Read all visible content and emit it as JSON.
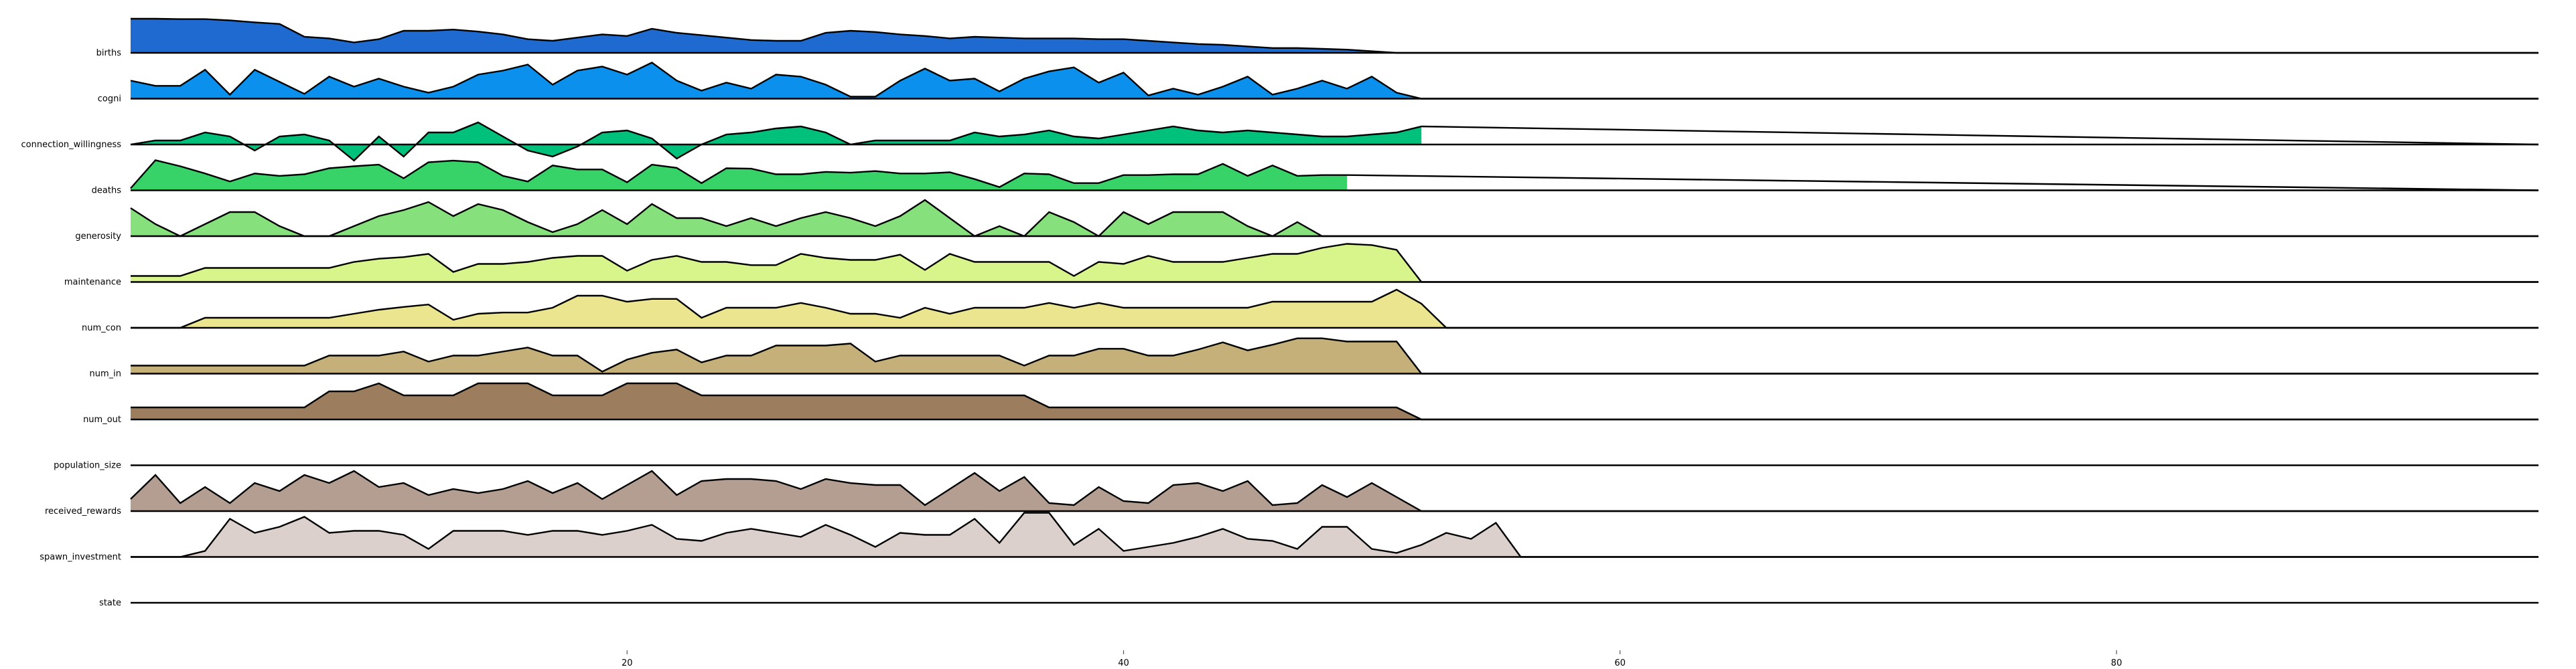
{
  "chart_data": {
    "type": "area",
    "title": "",
    "xlabel": "",
    "ylabel": "",
    "xlim": [
      0,
      97
    ],
    "x_ticks": [
      20,
      40,
      60,
      80
    ],
    "grid": false,
    "legend": "none",
    "series": [
      {
        "name": "births",
        "color": "#1f6ad0",
        "values": [
          0.85,
          0.85,
          0.84,
          0.84,
          0.81,
          0.76,
          0.72,
          0.4,
          0.36,
          0.26,
          0.34,
          0.55,
          0.55,
          0.58,
          0.53,
          0.46,
          0.34,
          0.3,
          0.38,
          0.46,
          0.42,
          0.6,
          0.5,
          0.44,
          0.38,
          0.32,
          0.3,
          0.3,
          0.5,
          0.55,
          0.52,
          0.46,
          0.42,
          0.36,
          0.4,
          0.38,
          0.36,
          0.36,
          0.36,
          0.34,
          0.34,
          0.3,
          0.26,
          0.22,
          0.2,
          0.16,
          0.12,
          0.12,
          0.1,
          0.08,
          0.04,
          0.0
        ]
      },
      {
        "name": "cogni",
        "color": "#0b90ee",
        "values": [
          0.45,
          0.32,
          0.32,
          0.72,
          0.1,
          0.72,
          0.42,
          0.12,
          0.55,
          0.3,
          0.5,
          0.3,
          0.15,
          0.3,
          0.6,
          0.7,
          0.85,
          0.35,
          0.7,
          0.8,
          0.6,
          0.9,
          0.45,
          0.2,
          0.4,
          0.25,
          0.6,
          0.55,
          0.35,
          0.05,
          0.05,
          0.45,
          0.75,
          0.45,
          0.5,
          0.18,
          0.5,
          0.68,
          0.78,
          0.4,
          0.65,
          0.08,
          0.25,
          0.1,
          0.3,
          0.55,
          0.1,
          0.25,
          0.45,
          0.25,
          0.55,
          0.15,
          0.0
        ]
      },
      {
        "name": "connection_willingness",
        "color": "#00c17c",
        "values": [
          0.0,
          0.1,
          0.1,
          0.3,
          0.2,
          -0.15,
          0.2,
          0.25,
          0.1,
          -0.4,
          0.2,
          -0.3,
          0.3,
          0.3,
          0.55,
          0.2,
          -0.15,
          -0.3,
          -0.05,
          0.3,
          0.35,
          0.15,
          -0.35,
          0.0,
          0.25,
          0.3,
          0.4,
          0.45,
          0.3,
          0.0,
          0.1,
          0.1,
          0.1,
          0.1,
          0.3,
          0.2,
          0.25,
          0.35,
          0.2,
          0.15,
          0.25,
          0.35,
          0.45,
          0.35,
          0.3,
          0.35,
          0.3,
          0.25,
          0.2,
          0.2,
          0.25,
          0.3,
          0.45
        ]
      },
      {
        "name": "deaths",
        "color": "#37d368",
        "values": [
          0.05,
          0.75,
          0.6,
          0.42,
          0.22,
          0.42,
          0.36,
          0.4,
          0.55,
          0.6,
          0.64,
          0.3,
          0.7,
          0.74,
          0.7,
          0.36,
          0.22,
          0.62,
          0.52,
          0.52,
          0.2,
          0.64,
          0.56,
          0.18,
          0.55,
          0.54,
          0.4,
          0.4,
          0.46,
          0.44,
          0.48,
          0.42,
          0.42,
          0.45,
          0.28,
          0.08,
          0.42,
          0.4,
          0.18,
          0.18,
          0.38,
          0.38,
          0.4,
          0.4,
          0.66,
          0.36,
          0.62,
          0.36,
          0.38,
          0.38
        ]
      },
      {
        "name": "generosity",
        "color": "#86e07c",
        "values": [
          0.7,
          0.3,
          0.0,
          0.3,
          0.6,
          0.6,
          0.25,
          0.0,
          0.0,
          0.25,
          0.5,
          0.65,
          0.85,
          0.5,
          0.8,
          0.65,
          0.35,
          0.1,
          0.3,
          0.65,
          0.3,
          0.8,
          0.45,
          0.45,
          0.25,
          0.45,
          0.25,
          0.45,
          0.6,
          0.45,
          0.25,
          0.5,
          0.9,
          0.45,
          0.0,
          0.25,
          0.0,
          0.6,
          0.35,
          0.0,
          0.6,
          0.3,
          0.6,
          0.6,
          0.6,
          0.25,
          0.0,
          0.35,
          0.0,
          0.0
        ]
      },
      {
        "name": "maintenance",
        "color": "#d8f58c",
        "values": [
          0.15,
          0.15,
          0.15,
          0.35,
          0.35,
          0.35,
          0.35,
          0.35,
          0.35,
          0.5,
          0.58,
          0.62,
          0.7,
          0.25,
          0.45,
          0.45,
          0.5,
          0.6,
          0.65,
          0.65,
          0.28,
          0.55,
          0.65,
          0.5,
          0.5,
          0.42,
          0.42,
          0.7,
          0.6,
          0.55,
          0.55,
          0.68,
          0.3,
          0.7,
          0.5,
          0.5,
          0.5,
          0.5,
          0.15,
          0.5,
          0.45,
          0.65,
          0.5,
          0.5,
          0.5,
          0.6,
          0.7,
          0.7,
          0.85,
          0.95,
          0.92,
          0.8,
          0.0
        ]
      },
      {
        "name": "num_con",
        "color": "#ece590",
        "values": [
          0.0,
          0.0,
          0.0,
          0.25,
          0.25,
          0.25,
          0.25,
          0.25,
          0.25,
          0.35,
          0.45,
          0.52,
          0.58,
          0.2,
          0.35,
          0.38,
          0.38,
          0.5,
          0.8,
          0.8,
          0.65,
          0.72,
          0.72,
          0.25,
          0.5,
          0.5,
          0.5,
          0.62,
          0.5,
          0.35,
          0.35,
          0.25,
          0.5,
          0.35,
          0.5,
          0.5,
          0.5,
          0.62,
          0.5,
          0.62,
          0.5,
          0.5,
          0.5,
          0.5,
          0.5,
          0.5,
          0.65,
          0.65,
          0.65,
          0.65,
          0.65,
          0.95,
          0.6,
          0.0
        ]
      },
      {
        "name": "num_in",
        "color": "#c4b078",
        "values": [
          0.2,
          0.2,
          0.2,
          0.2,
          0.2,
          0.2,
          0.2,
          0.2,
          0.45,
          0.45,
          0.45,
          0.55,
          0.3,
          0.45,
          0.45,
          0.55,
          0.65,
          0.45,
          0.45,
          0.05,
          0.35,
          0.52,
          0.6,
          0.28,
          0.45,
          0.45,
          0.7,
          0.7,
          0.7,
          0.75,
          0.3,
          0.45,
          0.45,
          0.45,
          0.45,
          0.45,
          0.2,
          0.45,
          0.45,
          0.62,
          0.62,
          0.45,
          0.45,
          0.6,
          0.78,
          0.58,
          0.72,
          0.88,
          0.88,
          0.8,
          0.8,
          0.8,
          0.0
        ]
      },
      {
        "name": "num_out",
        "color": "#9c7e5e",
        "values": [
          0.3,
          0.3,
          0.3,
          0.3,
          0.3,
          0.3,
          0.3,
          0.3,
          0.7,
          0.7,
          0.9,
          0.6,
          0.6,
          0.6,
          0.9,
          0.9,
          0.9,
          0.6,
          0.6,
          0.6,
          0.9,
          0.9,
          0.9,
          0.6,
          0.6,
          0.6,
          0.6,
          0.6,
          0.6,
          0.6,
          0.6,
          0.6,
          0.6,
          0.6,
          0.6,
          0.6,
          0.6,
          0.3,
          0.3,
          0.3,
          0.3,
          0.3,
          0.3,
          0.3,
          0.3,
          0.3,
          0.3,
          0.3,
          0.3,
          0.3,
          0.3,
          0.3,
          0.0
        ]
      },
      {
        "name": "population_size",
        "color": "#b49e92",
        "values": []
      },
      {
        "name": "received_rewards",
        "color": "#b49e92",
        "values": [
          0.3,
          0.9,
          0.2,
          0.6,
          0.2,
          0.7,
          0.5,
          0.9,
          0.7,
          1.0,
          0.6,
          0.7,
          0.4,
          0.55,
          0.45,
          0.55,
          0.75,
          0.45,
          0.7,
          0.3,
          0.65,
          1.0,
          0.4,
          0.75,
          0.8,
          0.8,
          0.75,
          0.55,
          0.8,
          0.7,
          0.65,
          0.65,
          0.15,
          0.55,
          0.95,
          0.5,
          0.85,
          0.2,
          0.15,
          0.6,
          0.25,
          0.2,
          0.65,
          0.7,
          0.5,
          0.75,
          0.15,
          0.2,
          0.65,
          0.35,
          0.7,
          0.35,
          0.0
        ]
      },
      {
        "name": "spawn_investment",
        "color": "#dcd0cc",
        "values": [
          0.0,
          0.0,
          0.0,
          0.15,
          0.95,
          0.6,
          0.75,
          1.0,
          0.6,
          0.65,
          0.65,
          0.55,
          0.2,
          0.65,
          0.65,
          0.65,
          0.55,
          0.65,
          0.65,
          0.55,
          0.65,
          0.8,
          0.45,
          0.4,
          0.6,
          0.7,
          0.6,
          0.5,
          0.8,
          0.55,
          0.25,
          0.6,
          0.55,
          0.55,
          0.95,
          0.35,
          1.1,
          1.1,
          0.3,
          0.7,
          0.15,
          0.25,
          0.35,
          0.5,
          0.7,
          0.45,
          0.4,
          0.2,
          0.75,
          0.75,
          0.2,
          0.1,
          0.3,
          0.6,
          0.45,
          0.85,
          0.0
        ]
      },
      {
        "name": "state",
        "color": "#ffffff",
        "values": []
      }
    ]
  }
}
